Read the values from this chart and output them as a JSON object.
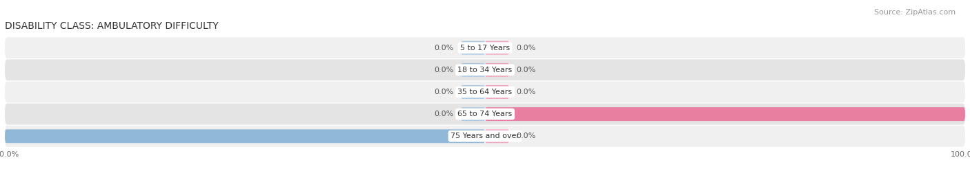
{
  "title": "DISABILITY CLASS: AMBULATORY DIFFICULTY",
  "source": "Source: ZipAtlas.com",
  "categories": [
    "5 to 17 Years",
    "18 to 34 Years",
    "35 to 64 Years",
    "65 to 74 Years",
    "75 Years and over"
  ],
  "male_values": [
    0.0,
    0.0,
    0.0,
    0.0,
    100.0
  ],
  "female_values": [
    0.0,
    0.0,
    0.0,
    100.0,
    0.0
  ],
  "male_color": "#92b8d8",
  "female_color": "#e87fa0",
  "male_stub_color": "#aecbe3",
  "female_stub_color": "#f0a8bc",
  "row_bg_even": "#f0f0f0",
  "row_bg_odd": "#e4e4e4",
  "title_fontsize": 10,
  "label_fontsize": 8,
  "tick_fontsize": 8,
  "source_fontsize": 8,
  "bar_height": 0.62,
  "stub_size": 5.0,
  "xlim_left": -100,
  "xlim_right": 100,
  "figsize": [
    14.06,
    2.68
  ],
  "dpi": 100
}
